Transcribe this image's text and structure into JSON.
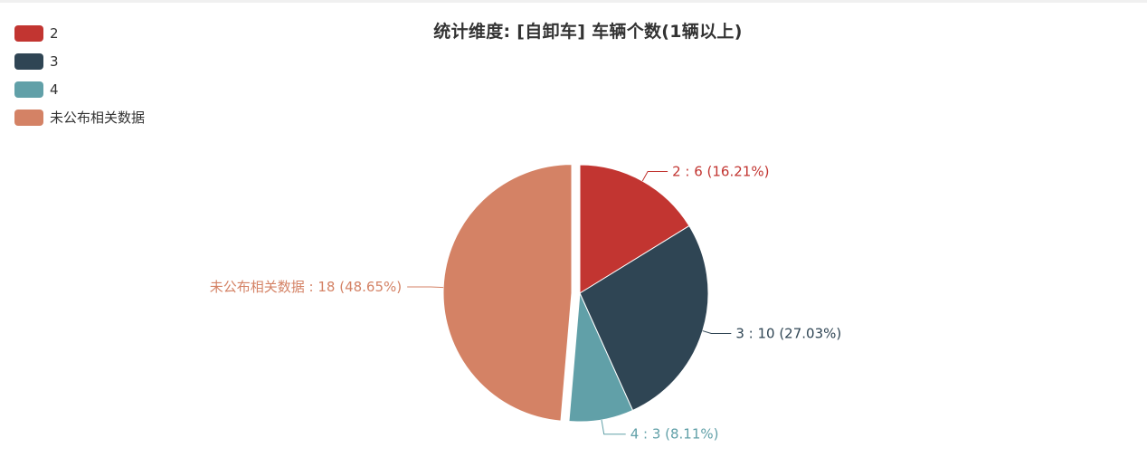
{
  "chart_data": {
    "type": "pie",
    "title": "统计维度: [自卸车] 车辆个数(1辆以上)",
    "legend_placement": "top-left",
    "slices": [
      {
        "name": "2",
        "value": 6,
        "percent": "16.21%",
        "color": "#c23531",
        "label": "2 : 6 (16.21%)"
      },
      {
        "name": "3",
        "value": 10,
        "percent": "27.03%",
        "color": "#2f4554",
        "label": "3 : 10 (27.03%)"
      },
      {
        "name": "4",
        "value": 3,
        "percent": "8.11%",
        "color": "#61a0a8",
        "label": "4 : 3 (8.11%)"
      },
      {
        "name": "未公布相关数据",
        "value": 18,
        "percent": "48.65%",
        "color": "#d48265",
        "label": "未公布相关数据 : 18 (48.65%)",
        "exploded": true
      }
    ]
  }
}
